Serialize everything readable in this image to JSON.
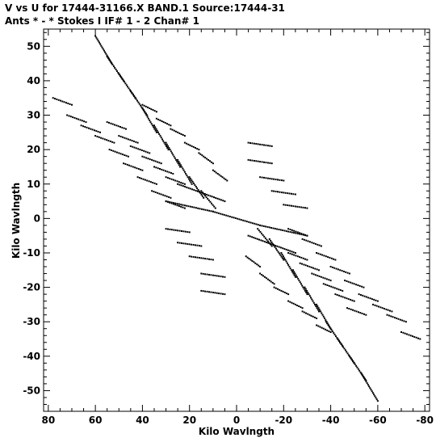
{
  "chart_data": {
    "type": "scatter",
    "title_line1": "V vs U for 17444-31166.X BAND.1   Source:17444-31",
    "title_line2": "Ants * - *     Stokes I  IF# 1 - 2   Chan# 1",
    "xlabel": "Kilo Wavlngth",
    "ylabel": "Kilo Wavlngth",
    "xlim": [
      82,
      -82
    ],
    "ylim": [
      -56,
      55
    ],
    "xticks": [
      80,
      60,
      40,
      20,
      0,
      -20,
      -40,
      -60,
      -80
    ],
    "xtick_labels": [
      "80",
      "60",
      "40",
      "20",
      "0",
      "-20",
      "-40",
      "-60",
      "-80"
    ],
    "yticks": [
      50,
      40,
      30,
      20,
      10,
      0,
      -10,
      -20,
      -30,
      -40,
      -50
    ],
    "ytick_labels": [
      "50",
      "40",
      "30",
      "20",
      "10",
      "0",
      "-10",
      "-20",
      "-30",
      "-40",
      "-50"
    ],
    "grid": false,
    "legend": "none",
    "point_color": "#000000",
    "segments": [
      {
        "u": [
          60,
          53
        ],
        "v": [
          53,
          45
        ]
      },
      {
        "u": [
          55,
          48
        ],
        "v": [
          47,
          40
        ]
      },
      {
        "u": [
          50,
          43
        ],
        "v": [
          42,
          35
        ]
      },
      {
        "u": [
          45,
          38
        ],
        "v": [
          37,
          30
        ]
      },
      {
        "u": [
          40,
          34
        ],
        "v": [
          32,
          25
        ]
      },
      {
        "u": [
          35,
          29
        ],
        "v": [
          27,
          20
        ]
      },
      {
        "u": [
          30,
          24
        ],
        "v": [
          22,
          15
        ]
      },
      {
        "u": [
          25,
          19
        ],
        "v": [
          17,
          10
        ]
      },
      {
        "u": [
          20,
          14
        ],
        "v": [
          12,
          6
        ]
      },
      {
        "u": [
          15,
          9
        ],
        "v": [
          8,
          3
        ]
      },
      {
        "u": [
          -60,
          -53
        ],
        "v": [
          -53,
          -45
        ]
      },
      {
        "u": [
          -55,
          -48
        ],
        "v": [
          -47,
          -40
        ]
      },
      {
        "u": [
          -50,
          -43
        ],
        "v": [
          -42,
          -35
        ]
      },
      {
        "u": [
          -45,
          -38
        ],
        "v": [
          -37,
          -30
        ]
      },
      {
        "u": [
          -40,
          -34
        ],
        "v": [
          -32,
          -25
        ]
      },
      {
        "u": [
          -35,
          -29
        ],
        "v": [
          -27,
          -20
        ]
      },
      {
        "u": [
          -30,
          -24
        ],
        "v": [
          -22,
          -15
        ]
      },
      {
        "u": [
          -25,
          -19
        ],
        "v": [
          -17,
          -10
        ]
      },
      {
        "u": [
          -20,
          -14
        ],
        "v": [
          -12,
          -6
        ]
      },
      {
        "u": [
          -15,
          -9
        ],
        "v": [
          -8,
          -3
        ]
      },
      {
        "u": [
          78,
          70
        ],
        "v": [
          35,
          33
        ]
      },
      {
        "u": [
          72,
          64
        ],
        "v": [
          30,
          28
        ]
      },
      {
        "u": [
          66,
          58
        ],
        "v": [
          27,
          25
        ]
      },
      {
        "u": [
          60,
          52
        ],
        "v": [
          24,
          22
        ]
      },
      {
        "u": [
          54,
          46
        ],
        "v": [
          20,
          18
        ]
      },
      {
        "u": [
          48,
          40
        ],
        "v": [
          16,
          14
        ]
      },
      {
        "u": [
          42,
          34
        ],
        "v": [
          12,
          10
        ]
      },
      {
        "u": [
          36,
          28
        ],
        "v": [
          8,
          6
        ]
      },
      {
        "u": [
          30,
          22
        ],
        "v": [
          5,
          3
        ]
      },
      {
        "u": [
          -78,
          -70
        ],
        "v": [
          -35,
          -33
        ]
      },
      {
        "u": [
          -72,
          -64
        ],
        "v": [
          -30,
          -28
        ]
      },
      {
        "u": [
          -66,
          -58
        ],
        "v": [
          -27,
          -25
        ]
      },
      {
        "u": [
          -60,
          -52
        ],
        "v": [
          -24,
          -22
        ]
      },
      {
        "u": [
          -54,
          -46
        ],
        "v": [
          -20,
          -18
        ]
      },
      {
        "u": [
          -48,
          -40
        ],
        "v": [
          -16,
          -14
        ]
      },
      {
        "u": [
          -42,
          -34
        ],
        "v": [
          -12,
          -10
        ]
      },
      {
        "u": [
          -36,
          -28
        ],
        "v": [
          -8,
          -6
        ]
      },
      {
        "u": [
          -30,
          -22
        ],
        "v": [
          -5,
          -3
        ]
      },
      {
        "u": [
          40,
          34
        ],
        "v": [
          33,
          31
        ]
      },
      {
        "u": [
          34,
          28
        ],
        "v": [
          29,
          27
        ]
      },
      {
        "u": [
          28,
          22
        ],
        "v": [
          26,
          24
        ]
      },
      {
        "u": [
          22,
          16
        ],
        "v": [
          22,
          20
        ]
      },
      {
        "u": [
          16,
          10
        ],
        "v": [
          19,
          16
        ]
      },
      {
        "u": [
          10,
          4
        ],
        "v": [
          14,
          11
        ]
      },
      {
        "u": [
          -40,
          -34
        ],
        "v": [
          -33,
          -31
        ]
      },
      {
        "u": [
          -34,
          -28
        ],
        "v": [
          -29,
          -27
        ]
      },
      {
        "u": [
          -28,
          -22
        ],
        "v": [
          -26,
          -24
        ]
      },
      {
        "u": [
          -22,
          -16
        ],
        "v": [
          -22,
          -20
        ]
      },
      {
        "u": [
          -16,
          -10
        ],
        "v": [
          -19,
          -16
        ]
      },
      {
        "u": [
          -10,
          -4
        ],
        "v": [
          -14,
          -11
        ]
      },
      {
        "u": [
          55,
          47
        ],
        "v": [
          28,
          26
        ]
      },
      {
        "u": [
          50,
          42
        ],
        "v": [
          24,
          22
        ]
      },
      {
        "u": [
          45,
          37
        ],
        "v": [
          21,
          19
        ]
      },
      {
        "u": [
          40,
          32
        ],
        "v": [
          18,
          16
        ]
      },
      {
        "u": [
          35,
          27
        ],
        "v": [
          15,
          13
        ]
      },
      {
        "u": [
          30,
          22
        ],
        "v": [
          12,
          10
        ]
      },
      {
        "u": [
          -55,
          -47
        ],
        "v": [
          -28,
          -26
        ]
      },
      {
        "u": [
          -50,
          -42
        ],
        "v": [
          -24,
          -22
        ]
      },
      {
        "u": [
          -45,
          -37
        ],
        "v": [
          -21,
          -19
        ]
      },
      {
        "u": [
          -40,
          -32
        ],
        "v": [
          -18,
          -16
        ]
      },
      {
        "u": [
          -35,
          -27
        ],
        "v": [
          -15,
          -13
        ]
      },
      {
        "u": [
          -30,
          -22
        ],
        "v": [
          -12,
          -10
        ]
      },
      {
        "u": [
          -5,
          -15
        ],
        "v": [
          22,
          21
        ]
      },
      {
        "u": [
          -5,
          -15
        ],
        "v": [
          17,
          16
        ]
      },
      {
        "u": [
          -10,
          -20
        ],
        "v": [
          12,
          11
        ]
      },
      {
        "u": [
          -15,
          -25
        ],
        "v": [
          8,
          7
        ]
      },
      {
        "u": [
          -20,
          -30
        ],
        "v": [
          4,
          3
        ]
      },
      {
        "u": [
          5,
          15
        ],
        "v": [
          -22,
          -21
        ]
      },
      {
        "u": [
          5,
          15
        ],
        "v": [
          -17,
          -16
        ]
      },
      {
        "u": [
          10,
          20
        ],
        "v": [
          -12,
          -11
        ]
      },
      {
        "u": [
          15,
          25
        ],
        "v": [
          -8,
          -7
        ]
      },
      {
        "u": [
          20,
          30
        ],
        "v": [
          -4,
          -3
        ]
      },
      {
        "u": [
          30,
          10
        ],
        "v": [
          5,
          2
        ]
      },
      {
        "u": [
          10,
          -10
        ],
        "v": [
          2,
          -2
        ]
      },
      {
        "u": [
          -10,
          -30
        ],
        "v": [
          -2,
          -5
        ]
      },
      {
        "u": [
          25,
          5
        ],
        "v": [
          10,
          5
        ]
      },
      {
        "u": [
          -5,
          -25
        ],
        "v": [
          -5,
          -10
        ]
      }
    ]
  }
}
